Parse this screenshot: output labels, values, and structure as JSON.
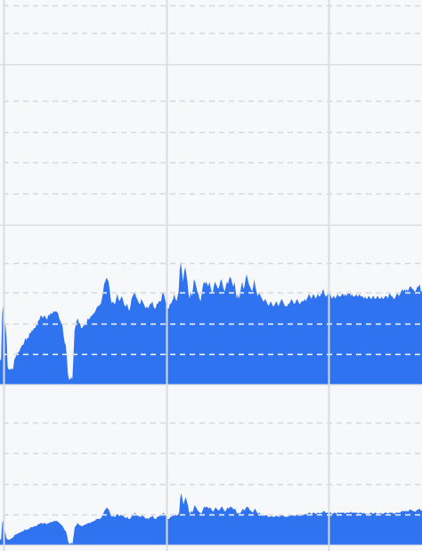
{
  "chart_data": [
    {
      "type": "area",
      "title": "",
      "xlabel": "",
      "ylabel": "",
      "grid": true,
      "legend": "none",
      "series": []
    },
    {
      "type": "area",
      "title": "",
      "xlabel": "",
      "ylabel": "",
      "grid": true,
      "legend": "none",
      "series": []
    },
    {
      "type": "area",
      "title": "",
      "xlabel": "",
      "ylabel": "",
      "grid": true,
      "legend": "none",
      "series": [
        {
          "values": [
            0.2,
            0.2,
            0.58,
            0.66,
            0.55,
            0.48,
            0.38,
            0.14,
            0.12,
            0.12,
            0.13,
            0.12,
            0.13,
            0.2,
            0.22,
            0.24,
            0.26,
            0.26,
            0.28,
            0.3,
            0.32,
            0.32,
            0.34,
            0.38,
            0.36,
            0.38,
            0.38,
            0.42,
            0.42,
            0.44,
            0.44,
            0.46,
            0.46,
            0.48,
            0.5,
            0.52,
            0.53,
            0.56,
            0.56,
            0.54,
            0.56,
            0.56,
            0.54,
            0.53,
            0.57,
            0.56,
            0.58,
            0.58,
            0.58,
            0.6,
            0.59,
            0.6,
            0.59,
            0.58,
            0.54,
            0.52,
            0.5,
            0.48,
            0.4,
            0.34,
            0.32,
            0.22,
            0.08,
            0.04,
            0.04,
            0.06,
            0.04,
            0.22,
            0.44,
            0.48,
            0.52,
            0.54,
            0.5,
            0.5,
            0.46,
            0.46,
            0.48,
            0.48,
            0.5,
            0.5,
            0.54,
            0.53,
            0.54,
            0.56,
            0.56,
            0.58,
            0.58,
            0.6,
            0.62,
            0.64,
            0.64,
            0.65,
            0.66,
            0.7,
            0.75,
            0.82,
            0.84,
            0.87,
            0.86,
            0.84,
            0.78,
            0.7,
            0.66,
            0.68,
            0.66,
            0.66,
            0.7,
            0.74,
            0.7,
            0.68,
            0.7,
            0.72,
            0.7,
            0.66,
            0.64,
            0.64,
            0.66,
            0.62,
            0.6,
            0.64,
            0.7,
            0.72,
            0.74,
            0.76,
            0.72,
            0.7,
            0.68,
            0.66,
            0.66,
            0.7,
            0.68,
            0.66,
            0.64,
            0.62,
            0.64,
            0.62,
            0.64,
            0.66,
            0.66,
            0.68,
            0.64,
            0.62,
            0.62,
            0.66,
            0.66,
            0.68,
            0.68,
            0.68,
            0.74,
            0.76,
            0.72,
            0.68,
            0.64,
            0.62,
            0.62,
            0.66,
            0.66,
            0.68,
            0.7,
            0.74,
            0.7,
            0.68,
            0.72,
            0.76,
            0.94,
            1.0,
            0.92,
            0.84,
            0.92,
            0.96,
            0.9,
            0.84,
            0.74,
            0.7,
            0.76,
            0.72,
            0.78,
            0.86,
            0.84,
            0.8,
            0.76,
            0.74,
            0.7,
            0.68,
            0.74,
            0.8,
            0.84,
            0.82,
            0.84,
            0.82,
            0.8,
            0.84,
            0.8,
            0.76,
            0.74,
            0.8,
            0.84,
            0.82,
            0.8,
            0.78,
            0.8,
            0.84,
            0.86,
            0.82,
            0.78,
            0.76,
            0.8,
            0.84,
            0.82,
            0.86,
            0.88,
            0.86,
            0.82,
            0.8,
            0.84,
            0.76,
            0.7,
            0.74,
            0.7,
            0.74,
            0.8,
            0.84,
            0.78,
            0.8,
            0.86,
            0.9,
            0.86,
            0.82,
            0.8,
            0.78,
            0.76,
            0.8,
            0.86,
            0.8,
            0.76,
            0.72,
            0.74,
            0.74,
            0.72,
            0.7,
            0.68,
            0.68,
            0.7,
            0.68,
            0.66,
            0.64,
            0.66,
            0.68,
            0.66,
            0.64,
            0.64,
            0.66,
            0.68,
            0.66,
            0.64,
            0.66,
            0.68,
            0.7,
            0.68,
            0.66,
            0.64,
            0.64,
            0.64,
            0.66,
            0.66,
            0.68,
            0.7,
            0.68,
            0.66,
            0.66,
            0.68,
            0.7,
            0.68,
            0.66,
            0.66,
            0.68,
            0.68,
            0.68,
            0.7,
            0.68,
            0.7,
            0.72,
            0.74,
            0.72,
            0.7,
            0.72,
            0.74,
            0.72,
            0.7,
            0.72,
            0.74,
            0.72,
            0.72,
            0.74,
            0.76,
            0.78,
            0.74,
            0.72,
            0.72,
            0.74,
            0.76,
            0.74,
            0.72,
            0.7,
            0.72,
            0.72,
            0.7,
            0.72,
            0.74,
            0.72,
            0.72,
            0.72,
            0.74,
            0.74,
            0.72,
            0.74,
            0.72,
            0.74,
            0.74,
            0.76,
            0.72,
            0.74,
            0.72,
            0.72,
            0.72,
            0.74,
            0.72,
            0.72,
            0.74,
            0.72,
            0.72,
            0.72,
            0.7,
            0.72,
            0.7,
            0.7,
            0.72,
            0.72,
            0.7,
            0.7,
            0.72,
            0.72,
            0.7,
            0.7,
            0.72,
            0.72,
            0.7,
            0.7,
            0.72,
            0.7,
            0.7,
            0.72,
            0.72,
            0.72,
            0.7,
            0.74,
            0.74,
            0.72,
            0.72,
            0.7,
            0.7,
            0.72,
            0.74,
            0.74,
            0.72,
            0.74,
            0.76,
            0.78,
            0.76,
            0.78,
            0.76,
            0.78,
            0.76,
            0.78,
            0.8,
            0.8,
            0.78,
            0.78,
            0.76,
            0.76,
            0.78,
            0.8,
            0.8,
            0.82,
            0.76,
            0.76
          ]
        }
      ]
    },
    {
      "type": "area",
      "title": "",
      "xlabel": "",
      "ylabel": "",
      "grid": true,
      "legend": "none",
      "series": [
        {
          "values": [
            0.1,
            0.1,
            0.42,
            0.48,
            0.34,
            0.22,
            0.12,
            0.1,
            0.1,
            0.1,
            0.12,
            0.13,
            0.14,
            0.18,
            0.2,
            0.2,
            0.22,
            0.22,
            0.24,
            0.24,
            0.26,
            0.26,
            0.28,
            0.3,
            0.28,
            0.3,
            0.3,
            0.32,
            0.34,
            0.34,
            0.34,
            0.36,
            0.36,
            0.36,
            0.38,
            0.4,
            0.4,
            0.42,
            0.42,
            0.4,
            0.42,
            0.42,
            0.4,
            0.4,
            0.42,
            0.42,
            0.44,
            0.44,
            0.44,
            0.46,
            0.46,
            0.46,
            0.46,
            0.44,
            0.42,
            0.4,
            0.38,
            0.36,
            0.32,
            0.28,
            0.26,
            0.18,
            0.06,
            0.02,
            0.02,
            0.04,
            0.02,
            0.18,
            0.34,
            0.36,
            0.4,
            0.42,
            0.38,
            0.38,
            0.36,
            0.36,
            0.38,
            0.38,
            0.4,
            0.4,
            0.42,
            0.42,
            0.42,
            0.44,
            0.44,
            0.46,
            0.46,
            0.48,
            0.5,
            0.5,
            0.5,
            0.5,
            0.52,
            0.56,
            0.6,
            0.66,
            0.68,
            0.72,
            0.7,
            0.68,
            0.62,
            0.56,
            0.54,
            0.56,
            0.54,
            0.54,
            0.58,
            0.6,
            0.56,
            0.56,
            0.58,
            0.58,
            0.56,
            0.54,
            0.52,
            0.52,
            0.54,
            0.5,
            0.5,
            0.52,
            0.56,
            0.58,
            0.6,
            0.62,
            0.58,
            0.56,
            0.56,
            0.54,
            0.54,
            0.56,
            0.56,
            0.54,
            0.52,
            0.5,
            0.52,
            0.5,
            0.52,
            0.54,
            0.54,
            0.56,
            0.52,
            0.5,
            0.5,
            0.54,
            0.54,
            0.56,
            0.56,
            0.56,
            0.6,
            0.62,
            0.58,
            0.56,
            0.52,
            0.5,
            0.5,
            0.54,
            0.54,
            0.56,
            0.58,
            0.6,
            0.58,
            0.56,
            0.58,
            0.62,
            0.9,
            1.0,
            0.88,
            0.78,
            0.86,
            0.92,
            0.84,
            0.76,
            0.64,
            0.6,
            0.66,
            0.62,
            0.68,
            0.76,
            0.74,
            0.7,
            0.66,
            0.64,
            0.62,
            0.6,
            0.64,
            0.7,
            0.74,
            0.72,
            0.74,
            0.72,
            0.7,
            0.72,
            0.7,
            0.66,
            0.64,
            0.68,
            0.72,
            0.7,
            0.68,
            0.66,
            0.68,
            0.72,
            0.74,
            0.7,
            0.66,
            0.64,
            0.68,
            0.72,
            0.7,
            0.72,
            0.74,
            0.72,
            0.7,
            0.68,
            0.7,
            0.64,
            0.6,
            0.62,
            0.6,
            0.62,
            0.66,
            0.7,
            0.66,
            0.68,
            0.72,
            0.74,
            0.72,
            0.68,
            0.66,
            0.64,
            0.62,
            0.66,
            0.7,
            0.66,
            0.62,
            0.6,
            0.62,
            0.6,
            0.58,
            0.56,
            0.56,
            0.56,
            0.58,
            0.56,
            0.54,
            0.54,
            0.54,
            0.56,
            0.54,
            0.54,
            0.54,
            0.56,
            0.56,
            0.54,
            0.54,
            0.56,
            0.56,
            0.58,
            0.56,
            0.54,
            0.54,
            0.54,
            0.54,
            0.56,
            0.56,
            0.58,
            0.58,
            0.56,
            0.56,
            0.56,
            0.58,
            0.58,
            0.56,
            0.56,
            0.56,
            0.58,
            0.58,
            0.58,
            0.6,
            0.58,
            0.6,
            0.62,
            0.62,
            0.6,
            0.6,
            0.62,
            0.62,
            0.6,
            0.6,
            0.62,
            0.62,
            0.6,
            0.62,
            0.62,
            0.64,
            0.66,
            0.62,
            0.62,
            0.62,
            0.62,
            0.64,
            0.62,
            0.6,
            0.6,
            0.62,
            0.62,
            0.6,
            0.62,
            0.62,
            0.62,
            0.62,
            0.62,
            0.62,
            0.62,
            0.6,
            0.62,
            0.62,
            0.62,
            0.62,
            0.64,
            0.62,
            0.62,
            0.62,
            0.62,
            0.62,
            0.62,
            0.6,
            0.62,
            0.62,
            0.62,
            0.6,
            0.62,
            0.6,
            0.6,
            0.6,
            0.6,
            0.6,
            0.62,
            0.62,
            0.6,
            0.6,
            0.62,
            0.62,
            0.6,
            0.6,
            0.6,
            0.62,
            0.6,
            0.6,
            0.6,
            0.62,
            0.62,
            0.62,
            0.6,
            0.62,
            0.62,
            0.62,
            0.62,
            0.6,
            0.6,
            0.62,
            0.62,
            0.62,
            0.62,
            0.62,
            0.64,
            0.66,
            0.64,
            0.66,
            0.64,
            0.66,
            0.64,
            0.66,
            0.68,
            0.68,
            0.66,
            0.66,
            0.64,
            0.64,
            0.66,
            0.68,
            0.68,
            0.7,
            0.66,
            0.66
          ]
        }
      ]
    }
  ],
  "colors": {
    "background": "#f7f8fa",
    "panel_border": "#d9dde3",
    "grid": "#d4d8de",
    "grid_on_fill": "#ffffff",
    "fill": "#2f73f0"
  }
}
